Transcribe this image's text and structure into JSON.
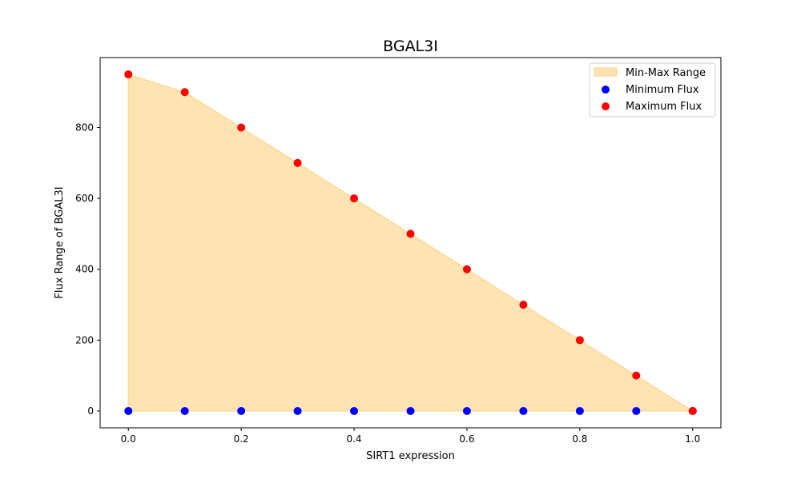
{
  "chart_data": {
    "type": "scatter",
    "title": "BGAL3I",
    "xlabel": "SIRT1 expression",
    "ylabel": "Flux Range of BGAL3I",
    "xlim": [
      -0.05,
      1.05
    ],
    "ylim": [
      -47.5,
      997.5
    ],
    "xticks": [
      0.0,
      0.2,
      0.4,
      0.6,
      0.8,
      1.0
    ],
    "xtick_labels": [
      "0.0",
      "0.2",
      "0.4",
      "0.6",
      "0.8",
      "1.0"
    ],
    "yticks": [
      0,
      200,
      400,
      600,
      800
    ],
    "ytick_labels": [
      "0",
      "200",
      "400",
      "600",
      "800"
    ],
    "grid": false,
    "legend_position": "top-right",
    "x": [
      0.0,
      0.1,
      0.2,
      0.3,
      0.4,
      0.5,
      0.6,
      0.7,
      0.8,
      0.9,
      1.0
    ],
    "series": [
      {
        "name": "Min-Max Range",
        "kind": "fill_between",
        "color": "#ffe3b3",
        "edge_color": "#ffd27f",
        "lower": [
          0,
          0,
          0,
          0,
          0,
          0,
          0,
          0,
          0,
          0,
          0
        ],
        "upper": [
          950,
          900,
          800,
          700,
          600,
          500,
          400,
          300,
          200,
          100,
          0
        ]
      },
      {
        "name": "Minimum Flux",
        "kind": "scatter",
        "color": "#0000ff",
        "values": [
          0,
          0,
          0,
          0,
          0,
          0,
          0,
          0,
          0,
          0,
          0
        ]
      },
      {
        "name": "Maximum Flux",
        "kind": "scatter",
        "color": "#ff0000",
        "values": [
          950,
          900,
          800,
          700,
          600,
          500,
          400,
          300,
          200,
          100,
          0
        ]
      }
    ]
  }
}
